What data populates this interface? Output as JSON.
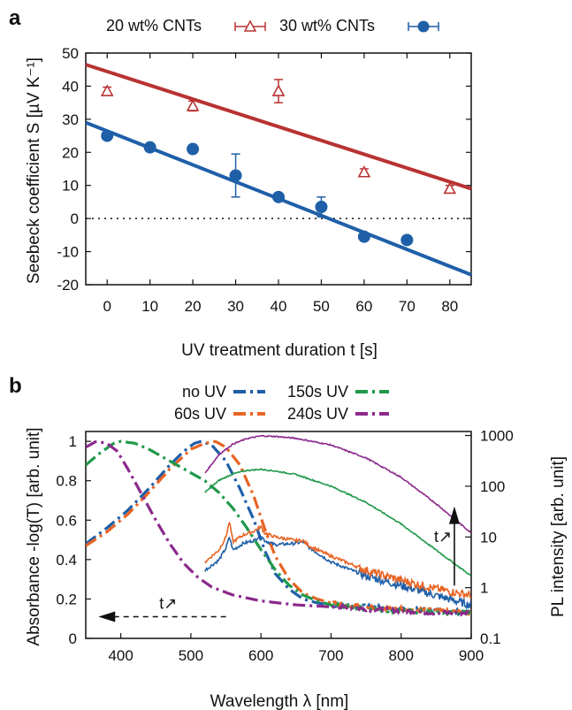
{
  "panels": {
    "a": "a",
    "b": "b"
  },
  "chart_data": [
    {
      "type": "scatter",
      "panel": "a",
      "xlabel": "UV treatment duration t [s]",
      "ylabel": "Seebeck coefficient S [µV K⁻¹]",
      "xlim": [
        -5,
        85
      ],
      "ylim": [
        -20,
        50
      ],
      "x_ticks": [
        0,
        10,
        20,
        30,
        40,
        50,
        60,
        70,
        80
      ],
      "y_ticks": [
        -20,
        -10,
        0,
        10,
        20,
        30,
        40,
        50
      ],
      "zero_line": "dotted",
      "legend": "top",
      "series": [
        {
          "name": "20 wt% CNTs",
          "color": "#b83232",
          "marker": "open-triangle",
          "points": [
            {
              "x": 0,
              "y": 38.5,
              "err": 1.2
            },
            {
              "x": 20,
              "y": 34,
              "err": 1.5
            },
            {
              "x": 40,
              "y": 38.5,
              "err": 3.5
            },
            {
              "x": 60,
              "y": 14,
              "err": 1
            },
            {
              "x": 80,
              "y": 9,
              "err": 1
            }
          ],
          "fit": {
            "x": [
              -5,
              85
            ],
            "y": [
              46.5,
              9
            ]
          }
        },
        {
          "name": "30 wt% CNTs",
          "color": "#1f5fa8",
          "marker": "filled-circle",
          "points": [
            {
              "x": 0,
              "y": 25,
              "err": 0.5
            },
            {
              "x": 10,
              "y": 21.5,
              "err": 0.5
            },
            {
              "x": 20,
              "y": 21,
              "err": 0.5
            },
            {
              "x": 30,
              "y": 13,
              "err": 6.5
            },
            {
              "x": 40,
              "y": 6.5,
              "err": 0.5
            },
            {
              "x": 50,
              "y": 3.5,
              "err": 3
            },
            {
              "x": 60,
              "y": -5.5,
              "err": 0.5
            },
            {
              "x": 70,
              "y": -6.5,
              "err": 0.5
            }
          ],
          "fit": {
            "x": [
              -5,
              85
            ],
            "y": [
              29,
              -17
            ]
          }
        }
      ]
    },
    {
      "type": "line",
      "panel": "b",
      "xlabel": "Wavelength λ [nm]",
      "ylabel_left": "Absorbance -log(T) [arb. unit]",
      "ylabel_right": "PL intensity [arb. unit]",
      "xlim": [
        350,
        900
      ],
      "ylim_left": [
        0,
        1.05
      ],
      "ylim_right": [
        0.1,
        1200
      ],
      "right_scale": "log",
      "x_ticks": [
        400,
        500,
        600,
        700,
        800,
        900
      ],
      "x_tick_labels": [
        "400",
        "500",
        "600",
        "700",
        "800",
        "900"
      ],
      "y_ticks_left": [
        0,
        0.2,
        0.4,
        0.6,
        0.8,
        1
      ],
      "y_tick_labels_left": [
        "0",
        "0.2",
        "0.4",
        "0.6",
        "0.8",
        "1"
      ],
      "y_ticks_right": [
        0.1,
        1,
        10,
        100,
        1000
      ],
      "y_tick_labels_right": [
        "0.1",
        "1",
        "10",
        "100",
        "1000"
      ],
      "legend": "top",
      "annotations": [
        "t↗",
        "t↗"
      ],
      "series": [
        {
          "name": "no UV",
          "color": "#1f5fa8",
          "absorbance": {
            "x": [
              350,
              380,
              410,
              440,
              470,
              490,
              505,
              515,
              530,
              550,
              570,
              590,
              605,
              620,
              640,
              660,
              680,
              700,
              750,
              800,
              850,
              900
            ],
            "y": [
              0.48,
              0.56,
              0.65,
              0.76,
              0.88,
              0.95,
              0.99,
              1.0,
              0.98,
              0.9,
              0.76,
              0.6,
              0.45,
              0.33,
              0.25,
              0.2,
              0.18,
              0.17,
              0.16,
              0.15,
              0.14,
              0.13
            ]
          },
          "pl": {
            "x": [
              520,
              540,
              550,
              555,
              560,
              575,
              590,
              600,
              605,
              620,
              650,
              660,
              670,
              700,
              750,
              800,
              850,
              900
            ],
            "y": [
              2.2,
              3.5,
              6,
              10,
              5.5,
              7.5,
              8.5,
              11,
              8.5,
              7,
              7.5,
              8,
              6,
              3.2,
              1.7,
              1.1,
              0.7,
              0.45
            ]
          }
        },
        {
          "name": "60s UV",
          "color": "#e86424",
          "absorbance": {
            "x": [
              350,
              380,
              410,
              440,
              470,
              500,
              520,
              535,
              550,
              570,
              590,
              605,
              620,
              640,
              660,
              680,
              700,
              750,
              800,
              850,
              900
            ],
            "y": [
              0.47,
              0.54,
              0.63,
              0.74,
              0.86,
              0.96,
              0.99,
              1.0,
              0.97,
              0.88,
              0.72,
              0.56,
              0.42,
              0.3,
              0.23,
              0.2,
              0.18,
              0.16,
              0.15,
              0.14,
              0.13
            ]
          },
          "pl": {
            "x": [
              520,
              540,
              550,
              555,
              560,
              575,
              590,
              600,
              605,
              620,
              650,
              660,
              670,
              700,
              750,
              800,
              850,
              900
            ],
            "y": [
              3.2,
              5.5,
              10,
              20,
              8,
              11,
              13,
              16,
              12,
              10,
              8.5,
              8.5,
              6.5,
              4.2,
              2.2,
              1.4,
              0.95,
              0.7
            ]
          }
        },
        {
          "name": "150s UV",
          "color": "#20994a",
          "absorbance": {
            "x": [
              350,
              370,
              390,
              400,
              420,
              440,
              460,
              480,
              500,
              520,
              540,
              560,
              580,
              600,
              620,
              640,
              660,
              680,
              700,
              750,
              800,
              850,
              900
            ],
            "y": [
              0.88,
              0.94,
              0.99,
              1.0,
              0.99,
              0.96,
              0.92,
              0.88,
              0.84,
              0.8,
              0.74,
              0.66,
              0.56,
              0.45,
              0.35,
              0.27,
              0.22,
              0.19,
              0.17,
              0.15,
              0.14,
              0.13,
              0.13
            ]
          },
          "pl": {
            "x": [
              520,
              540,
              560,
              580,
              600,
              620,
              650,
              700,
              750,
              800,
              850,
              900
            ],
            "y": [
              75,
              130,
              175,
              205,
              215,
              200,
              170,
              100,
              48,
              18,
              5.5,
              1.7
            ]
          }
        },
        {
          "name": "240s UV",
          "color": "#8b2a8c",
          "absorbance": {
            "x": [
              350,
              365,
              380,
              395,
              410,
              430,
              450,
              470,
              490,
              510,
              530,
              560,
              600,
              650,
              700,
              750,
              800,
              850,
              900
            ],
            "y": [
              0.97,
              1.0,
              0.99,
              0.95,
              0.86,
              0.73,
              0.6,
              0.48,
              0.38,
              0.31,
              0.26,
              0.22,
              0.19,
              0.17,
              0.16,
              0.15,
              0.14,
              0.13,
              0.13
            ]
          },
          "pl": {
            "x": [
              520,
              540,
              560,
              580,
              600,
              620,
              650,
              700,
              750,
              800,
              850,
              900
            ],
            "y": [
              180,
              420,
              680,
              870,
              980,
              960,
              880,
              650,
              360,
              150,
              45,
              12
            ]
          }
        }
      ]
    }
  ]
}
